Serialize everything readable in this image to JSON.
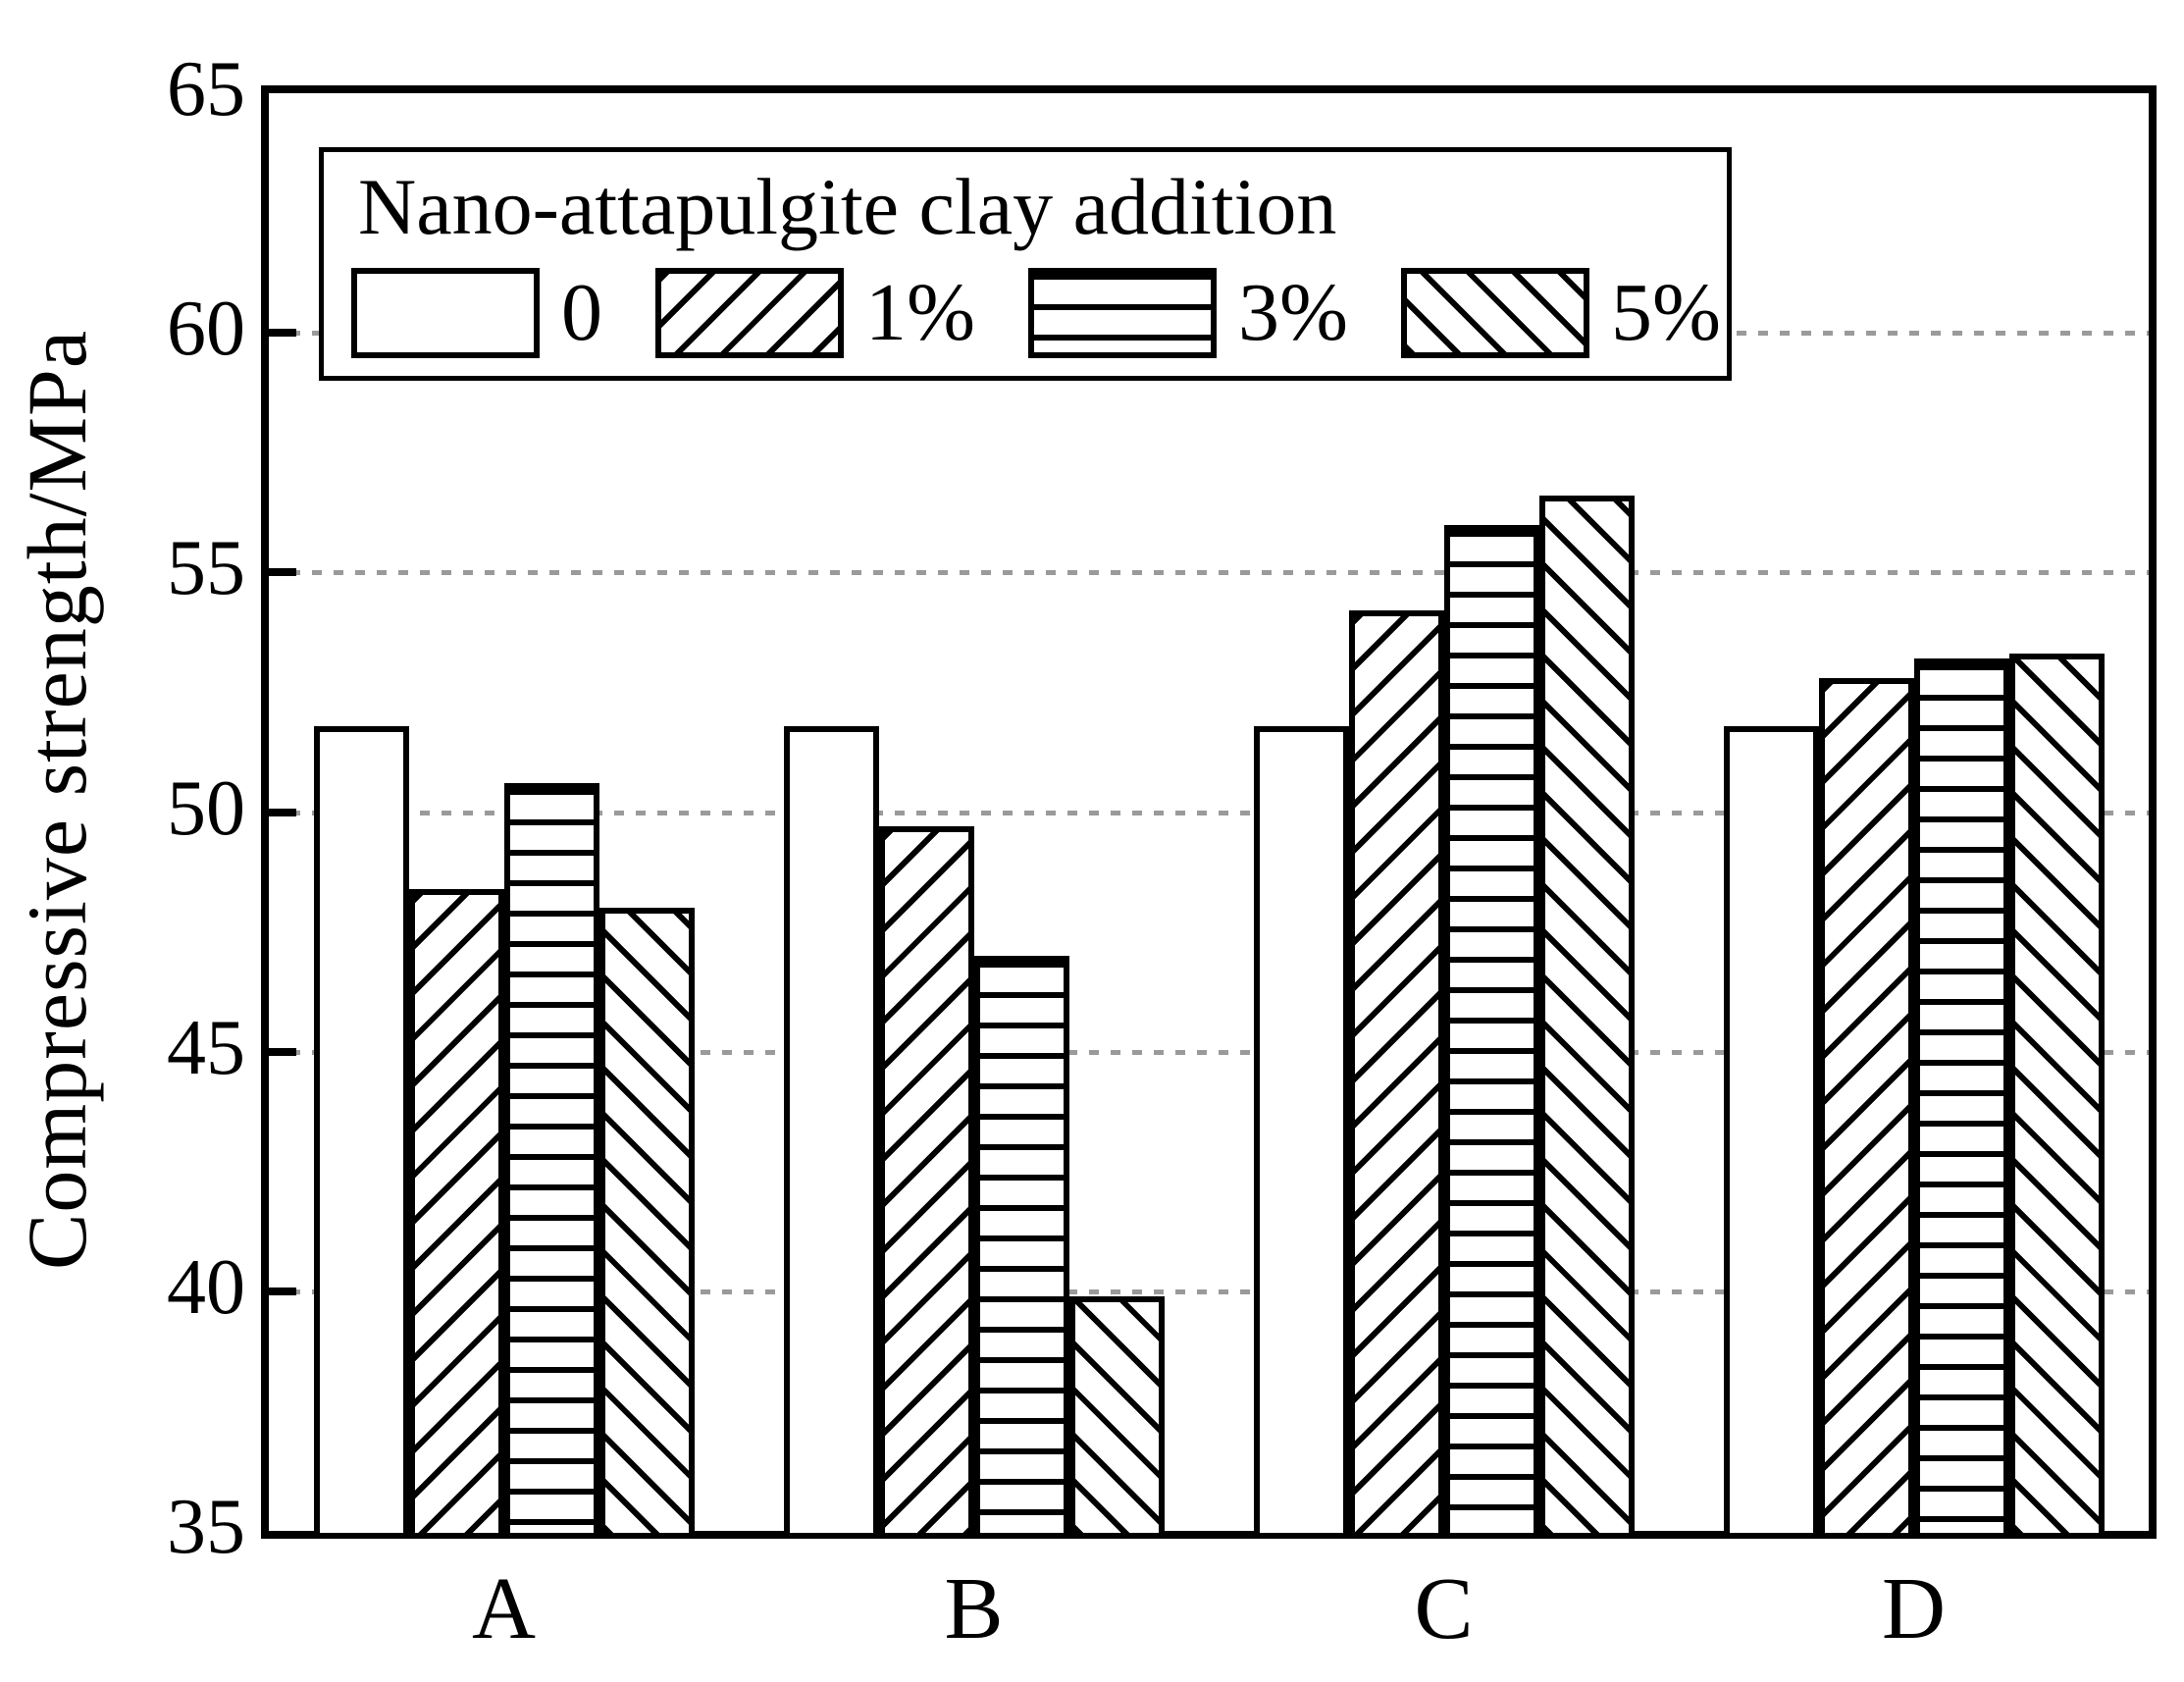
{
  "figure": {
    "ylabel": "Compressive strength/MPa",
    "legend_title": "Nano-attapulgite clay addition"
  },
  "chart_data": {
    "type": "bar",
    "title": "",
    "xlabel": "",
    "ylabel": "Compressive strength/MPa",
    "categories": [
      "A",
      "B",
      "C",
      "D"
    ],
    "series": [
      {
        "name": "0",
        "hatch": "none",
        "values": [
          51.8,
          51.8,
          51.8,
          51.8
        ]
      },
      {
        "name": "1%",
        "hatch": "forward-diagonal",
        "values": [
          48.4,
          49.7,
          54.2,
          52.8
        ]
      },
      {
        "name": "3%",
        "hatch": "horizontal",
        "values": [
          50.6,
          47.0,
          56.0,
          53.2
        ]
      },
      {
        "name": "5%",
        "hatch": "backward-diagonal",
        "values": [
          48.0,
          39.9,
          56.6,
          53.3
        ]
      }
    ],
    "ylim": [
      35,
      65
    ],
    "yticks": [
      35,
      40,
      45,
      50,
      55,
      60,
      65
    ],
    "gridlines": [
      40,
      45,
      50,
      55,
      60
    ],
    "grid_style": "dotted",
    "legend": {
      "title": "Nano-attapulgite clay addition",
      "labels": [
        "0",
        "1%",
        "3%",
        "5%"
      ],
      "position": "top-left-inside"
    },
    "colors": {
      "bar_fill": "#ffffff",
      "bar_border": "#000000",
      "grid": "#9a9a9a",
      "text": "#000000"
    }
  }
}
